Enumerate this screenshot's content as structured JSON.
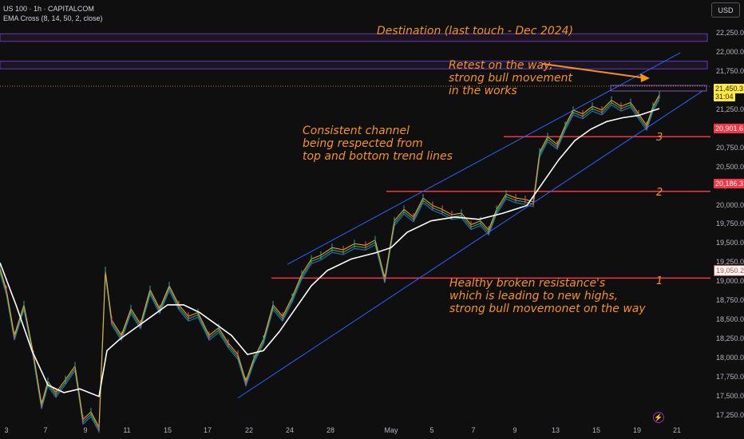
{
  "header": {
    "symbol": "US 100 · 1h · CAPITALCOM",
    "indicator": "EMA Cross (8, 14, 50, 2, close)"
  },
  "toolbar": {
    "currency": "USD"
  },
  "chart_data": {
    "type": "line",
    "ylim": [
      17100,
      22420
    ],
    "y_ticks": [
      "22,250.0",
      "22,000.0",
      "21,750.0",
      "21,500.0",
      "21,250.0",
      "21,000.0",
      "20,750.0",
      "20,500.0",
      "20,250.0",
      "20,000.0",
      "19,750.0",
      "19,500.0",
      "19,250.0",
      "19,000.0",
      "18,750.0",
      "18,500.0",
      "18,250.0",
      "18,000.0",
      "17,750.0",
      "17,500.0",
      "17,250.0"
    ],
    "x_ticks": [
      "3",
      "7",
      "9",
      "11",
      "15",
      "17",
      "22",
      "24",
      "28",
      "May",
      "5",
      "7",
      "9",
      "13",
      "15",
      "19",
      "21"
    ],
    "price_labels": [
      {
        "text": "21,450.3",
        "style": "yellow"
      },
      {
        "text": "31:04",
        "style": "yellow"
      },
      {
        "text": "20,901.6",
        "style": "red"
      },
      {
        "text": "20,186.3",
        "style": "red"
      },
      {
        "text": "19,050.2",
        "style": "white"
      }
    ],
    "resistance_levels": [
      19050.2,
      20186.3,
      20901.6
    ],
    "zones": [
      {
        "from": 22150,
        "to": 22250
      },
      {
        "from": 21790,
        "to": 21890
      }
    ],
    "price_series": [
      {
        "x": 0,
        "y": 19180
      },
      {
        "x": 8,
        "y": 18900
      },
      {
        "x": 18,
        "y": 18300
      },
      {
        "x": 30,
        "y": 18700
      },
      {
        "x": 42,
        "y": 18050
      },
      {
        "x": 52,
        "y": 17400
      },
      {
        "x": 60,
        "y": 17700
      },
      {
        "x": 70,
        "y": 17550
      },
      {
        "x": 82,
        "y": 17720
      },
      {
        "x": 94,
        "y": 17900
      },
      {
        "x": 104,
        "y": 17200
      },
      {
        "x": 114,
        "y": 17300
      },
      {
        "x": 124,
        "y": 17100
      },
      {
        "x": 132,
        "y": 19150
      },
      {
        "x": 140,
        "y": 18500
      },
      {
        "x": 152,
        "y": 18300
      },
      {
        "x": 164,
        "y": 18650
      },
      {
        "x": 176,
        "y": 18450
      },
      {
        "x": 188,
        "y": 18900
      },
      {
        "x": 200,
        "y": 18650
      },
      {
        "x": 212,
        "y": 18950
      },
      {
        "x": 224,
        "y": 18700
      },
      {
        "x": 236,
        "y": 18550
      },
      {
        "x": 248,
        "y": 18600
      },
      {
        "x": 262,
        "y": 18300
      },
      {
        "x": 274,
        "y": 18400
      },
      {
        "x": 286,
        "y": 18200
      },
      {
        "x": 298,
        "y": 18050
      },
      {
        "x": 308,
        "y": 17700
      },
      {
        "x": 318,
        "y": 18000
      },
      {
        "x": 330,
        "y": 18250
      },
      {
        "x": 342,
        "y": 18700
      },
      {
        "x": 354,
        "y": 18550
      },
      {
        "x": 366,
        "y": 18800
      },
      {
        "x": 378,
        "y": 19100
      },
      {
        "x": 390,
        "y": 19300
      },
      {
        "x": 402,
        "y": 19350
      },
      {
        "x": 416,
        "y": 19450
      },
      {
        "x": 430,
        "y": 19420
      },
      {
        "x": 444,
        "y": 19500
      },
      {
        "x": 458,
        "y": 19480
      },
      {
        "x": 470,
        "y": 19550
      },
      {
        "x": 482,
        "y": 19050
      },
      {
        "x": 494,
        "y": 19800
      },
      {
        "x": 506,
        "y": 19950
      },
      {
        "x": 518,
        "y": 19850
      },
      {
        "x": 530,
        "y": 20100
      },
      {
        "x": 542,
        "y": 20000
      },
      {
        "x": 554,
        "y": 19950
      },
      {
        "x": 566,
        "y": 19880
      },
      {
        "x": 578,
        "y": 19900
      },
      {
        "x": 590,
        "y": 19750
      },
      {
        "x": 602,
        "y": 19800
      },
      {
        "x": 612,
        "y": 19680
      },
      {
        "x": 622,
        "y": 19950
      },
      {
        "x": 634,
        "y": 20150
      },
      {
        "x": 646,
        "y": 20100
      },
      {
        "x": 658,
        "y": 20080
      },
      {
        "x": 668,
        "y": 20050
      },
      {
        "x": 676,
        "y": 20700
      },
      {
        "x": 686,
        "y": 20900
      },
      {
        "x": 698,
        "y": 20800
      },
      {
        "x": 708,
        "y": 21050
      },
      {
        "x": 718,
        "y": 21250
      },
      {
        "x": 730,
        "y": 21200
      },
      {
        "x": 742,
        "y": 21300
      },
      {
        "x": 754,
        "y": 21250
      },
      {
        "x": 766,
        "y": 21380
      },
      {
        "x": 778,
        "y": 21300
      },
      {
        "x": 790,
        "y": 21350
      },
      {
        "x": 800,
        "y": 21200
      },
      {
        "x": 810,
        "y": 21050
      },
      {
        "x": 818,
        "y": 21300
      },
      {
        "x": 826,
        "y": 21450
      }
    ],
    "ema50_series": [
      {
        "x": 0,
        "y": 19250
      },
      {
        "x": 20,
        "y": 18700
      },
      {
        "x": 40,
        "y": 18100
      },
      {
        "x": 60,
        "y": 17650
      },
      {
        "x": 80,
        "y": 17550
      },
      {
        "x": 100,
        "y": 17600
      },
      {
        "x": 124,
        "y": 17500
      },
      {
        "x": 134,
        "y": 18100
      },
      {
        "x": 150,
        "y": 18250
      },
      {
        "x": 170,
        "y": 18400
      },
      {
        "x": 190,
        "y": 18550
      },
      {
        "x": 210,
        "y": 18700
      },
      {
        "x": 230,
        "y": 18700
      },
      {
        "x": 250,
        "y": 18600
      },
      {
        "x": 270,
        "y": 18450
      },
      {
        "x": 290,
        "y": 18300
      },
      {
        "x": 310,
        "y": 18050
      },
      {
        "x": 330,
        "y": 18100
      },
      {
        "x": 350,
        "y": 18350
      },
      {
        "x": 370,
        "y": 18650
      },
      {
        "x": 390,
        "y": 18950
      },
      {
        "x": 410,
        "y": 19150
      },
      {
        "x": 440,
        "y": 19300
      },
      {
        "x": 470,
        "y": 19380
      },
      {
        "x": 490,
        "y": 19450
      },
      {
        "x": 510,
        "y": 19650
      },
      {
        "x": 540,
        "y": 19800
      },
      {
        "x": 570,
        "y": 19850
      },
      {
        "x": 600,
        "y": 19820
      },
      {
        "x": 630,
        "y": 19900
      },
      {
        "x": 660,
        "y": 20000
      },
      {
        "x": 680,
        "y": 20300
      },
      {
        "x": 700,
        "y": 20600
      },
      {
        "x": 720,
        "y": 20850
      },
      {
        "x": 740,
        "y": 21000
      },
      {
        "x": 760,
        "y": 21100
      },
      {
        "x": 780,
        "y": 21150
      },
      {
        "x": 800,
        "y": 21180
      },
      {
        "x": 826,
        "y": 21270
      }
    ],
    "channel": {
      "upper": [
        {
          "x": 360,
          "y": 19230
        },
        {
          "x": 852,
          "y": 22000
        }
      ],
      "lower": [
        {
          "x": 298,
          "y": 17480
        },
        {
          "x": 880,
          "y": 21500
        }
      ]
    },
    "annotations": [
      {
        "text": "Destination (last touch - Dec 2024)"
      },
      {
        "text": "Retest on the way,\nstrong bull movement\nin the works"
      },
      {
        "text": "Consistent channel\nbeing respected from\ntop and bottom trend lines"
      },
      {
        "text": "Healthy broken resistance's\nwhich is leading to new highs,\nstrong bull movemonet on the way"
      }
    ],
    "level_labels": [
      "3",
      "2",
      "1"
    ],
    "colors": {
      "accent": "#f7931a",
      "resistance": "#f23645",
      "channel": "#2962ff",
      "zone": "#673ab7",
      "ema_long": "#ffffff"
    }
  }
}
